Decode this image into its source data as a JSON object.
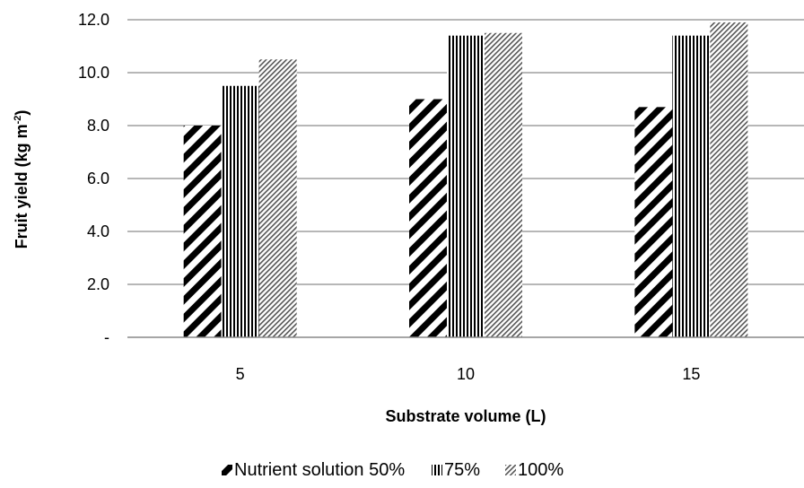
{
  "chart_data": {
    "type": "bar",
    "categories": [
      "5",
      "10",
      "15"
    ],
    "series": [
      {
        "name": "Nutrient solution 50%",
        "values": [
          8.0,
          9.0,
          8.7
        ],
        "pattern": "wide-diagonal"
      },
      {
        "name": "75%",
        "values": [
          9.5,
          11.4,
          11.4
        ],
        "pattern": "vertical"
      },
      {
        "name": "100%",
        "values": [
          10.5,
          11.5,
          11.9
        ],
        "pattern": "fine-diagonal"
      }
    ],
    "y_ticks": [
      "-",
      "2.0",
      "4.0",
      "6.0",
      "8.0",
      "10.0",
      "12.0"
    ],
    "ylim": [
      0,
      12
    ],
    "xlabel": "Substrate volume (L)",
    "ylabel_main": "Fruit yield (kg m",
    "ylabel_sup": "-2",
    "ylabel_end": ")",
    "grid": true,
    "legend_position": "bottom"
  }
}
